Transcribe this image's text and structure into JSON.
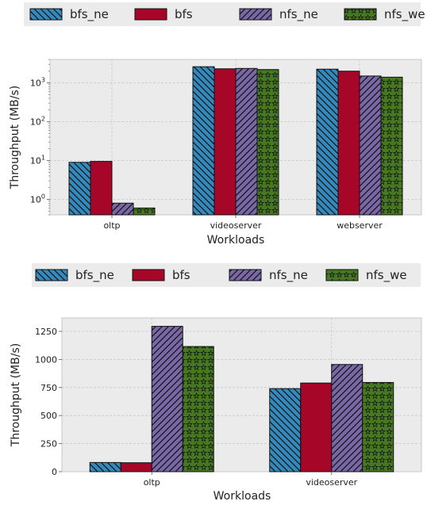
{
  "colors": {
    "background": "#ebebeb",
    "bfs_ne": "#348abd",
    "bfs": "#a60628",
    "nfs_ne": "#7a68a6",
    "nfs_we": "#467821"
  },
  "chart_data": [
    {
      "type": "bar",
      "yscale": "log",
      "categories": [
        "oltp",
        "videoserver",
        "webserver"
      ],
      "series": [
        {
          "name": "bfs_ne",
          "values": [
            9,
            2600,
            2250
          ],
          "hatch": "diagonal-back",
          "color": "#348abd"
        },
        {
          "name": "bfs",
          "values": [
            9.5,
            2300,
            2000
          ],
          "hatch": "none",
          "color": "#a60628"
        },
        {
          "name": "nfs_ne",
          "values": [
            0.8,
            2350,
            1500
          ],
          "hatch": "diagonal",
          "color": "#7a68a6"
        },
        {
          "name": "nfs_we",
          "values": [
            0.6,
            2200,
            1400
          ],
          "hatch": "stars",
          "color": "#467821"
        }
      ],
      "xlabel": "Workloads",
      "ylabel": "Throughput (MB/s)",
      "ylim": [
        0.4,
        4000
      ],
      "yticks": [
        1,
        10,
        100,
        1000
      ],
      "ytick_labels": [
        [
          "10",
          "0"
        ],
        [
          "10",
          "1"
        ],
        [
          "10",
          "2"
        ],
        [
          "10",
          "3"
        ]
      ],
      "grid": true,
      "legend": "top"
    },
    {
      "type": "bar",
      "categories": [
        "oltp",
        "videoserver"
      ],
      "series": [
        {
          "name": "bfs_ne",
          "values": [
            82,
            740
          ],
          "hatch": "diagonal-back",
          "color": "#348abd"
        },
        {
          "name": "bfs",
          "values": [
            80,
            790
          ],
          "hatch": "none",
          "color": "#a60628"
        },
        {
          "name": "nfs_ne",
          "values": [
            1295,
            955
          ],
          "hatch": "diagonal",
          "color": "#7a68a6"
        },
        {
          "name": "nfs_we",
          "values": [
            1115,
            795
          ],
          "hatch": "stars",
          "color": "#467821"
        }
      ],
      "xlabel": "Workloads",
      "ylabel": "Throughput (MB/s)",
      "ylim": [
        0,
        1370
      ],
      "yticks": [
        0,
        250,
        500,
        750,
        1000,
        1250
      ],
      "ytick_labels": [
        "0",
        "250",
        "500",
        "750",
        "1000",
        "1250"
      ],
      "grid": true,
      "legend": "top"
    }
  ]
}
